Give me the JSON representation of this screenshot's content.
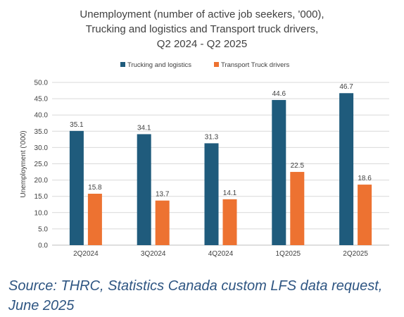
{
  "chart_data": {
    "type": "bar",
    "title_lines": [
      "Unemployment (number of active job seekers, '000),",
      "Trucking and logistics and Transport truck drivers,",
      "Q2 2024 - Q2 2025"
    ],
    "categories": [
      "2Q2024",
      "3Q2024",
      "4Q2024",
      "1Q2025",
      "2Q2025"
    ],
    "series": [
      {
        "name": "Trucking and logistics",
        "values": [
          35.1,
          34.1,
          31.3,
          44.6,
          46.7
        ],
        "labels": [
          "35.1",
          "34.1",
          "31.3",
          "44.6",
          "46.7"
        ],
        "color": "#1f5b7c"
      },
      {
        "name": "Transport Truck drivers",
        "values": [
          15.8,
          13.7,
          14.1,
          22.5,
          18.6
        ],
        "labels": [
          "15.8",
          "13.7",
          "14.1",
          "22.5",
          "18.6"
        ],
        "color": "#ed7231"
      }
    ],
    "xlabel": "",
    "ylabel": "Unemployment ('000)",
    "ylim": [
      0,
      50
    ],
    "yticks": [
      "0.0",
      "5.0",
      "10.0",
      "15.0",
      "20.0",
      "25.0",
      "30.0",
      "35.0",
      "40.0",
      "45.0",
      "50.0"
    ],
    "grid": true,
    "legend_position": "top"
  },
  "source_text": "Source: THRC, Statistics Canada custom LFS data request, June 2025"
}
